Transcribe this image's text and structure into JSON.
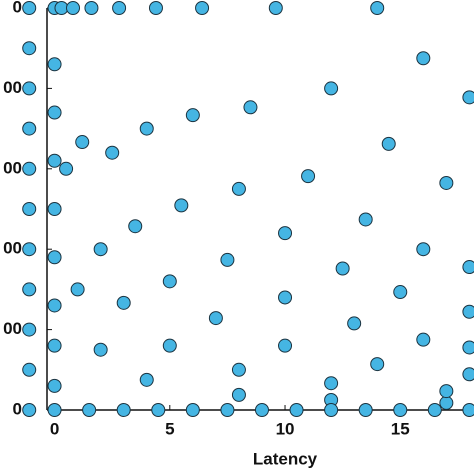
{
  "chart_data": {
    "type": "scatter",
    "x_label": "Latency",
    "xlim": [
      -1.5,
      18.2
    ],
    "xticks": [
      0,
      5,
      10,
      15
    ],
    "ylim": [
      0,
      5000
    ],
    "yticks": [
      {
        "value": 0,
        "label": "0"
      },
      {
        "value": 1000,
        "label": "00"
      },
      {
        "value": 2000,
        "label": "00"
      },
      {
        "value": 3000,
        "label": "00"
      },
      {
        "value": 4000,
        "label": "00"
      },
      {
        "value": 5000,
        "label": "0"
      }
    ],
    "color": "#45b5e3",
    "edge_color": "#1b3340",
    "x": [
      -1.1,
      -1.1,
      -1.1,
      -1.1,
      -1.1,
      -1.1,
      -1.1,
      -1.1,
      -1.1,
      -1.1,
      -1.1,
      0,
      0,
      0,
      0,
      0,
      0,
      0,
      0,
      0,
      0,
      0.3,
      0.5,
      1,
      2,
      4,
      8,
      12,
      17,
      0.8,
      1.2,
      2,
      3,
      5,
      8,
      12,
      17,
      1.6,
      2.5,
      3.5,
      5,
      7,
      10,
      14,
      18,
      2.8,
      4,
      5.5,
      7.5,
      10,
      13,
      16,
      18,
      4.4,
      6,
      8,
      10,
      12.5,
      15,
      18,
      6.4,
      8.5,
      11,
      13.5,
      16,
      18,
      9.6,
      12,
      14.5,
      17,
      14,
      16,
      18,
      1.5,
      3,
      4.5,
      6,
      7.5,
      9,
      10.5,
      12,
      13.5,
      15,
      16.5,
      18
    ],
    "y": [
      0,
      500,
      1000,
      1500,
      2000,
      2500,
      3000,
      3500,
      4000,
      4500,
      5000,
      0,
      300,
      800,
      1300,
      1900,
      2500,
      3100,
      3700,
      4300,
      5000,
      5000,
      3000,
      1500,
      750,
      375,
      188,
      125,
      88,
      5000,
      3333,
      2000,
      1333,
      800,
      500,
      333,
      235,
      5000,
      3200,
      2286,
      1600,
      1143,
      800,
      571,
      444,
      5000,
      3500,
      2545,
      1867,
      1400,
      1077,
      875,
      778,
      5000,
      3667,
      2750,
      2200,
      1760,
      1467,
      1222,
      5000,
      3765,
      2909,
      2370,
      2000,
      1778,
      5000,
      4000,
      3310,
      2824,
      5000,
      4375,
      3889,
      0,
      0,
      0,
      0,
      0,
      0,
      0,
      0,
      0,
      0,
      0,
      0
    ]
  }
}
